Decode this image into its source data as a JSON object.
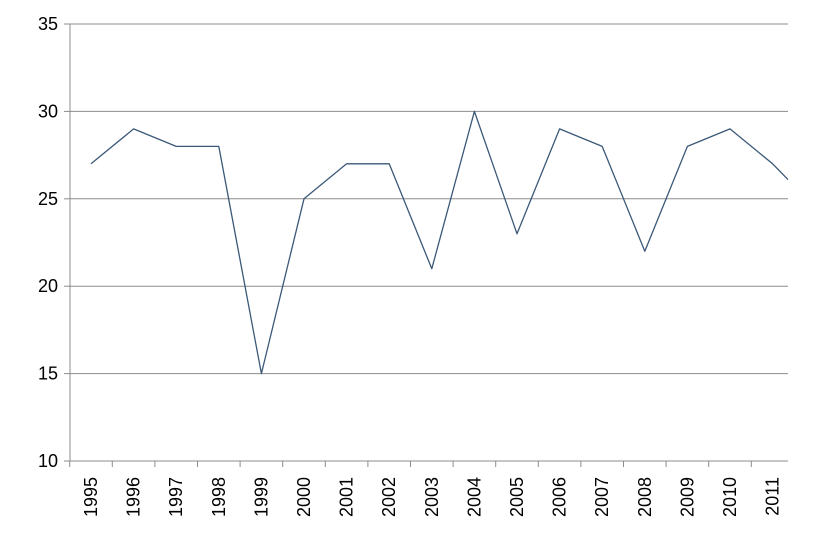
{
  "chart_data": {
    "type": "line",
    "title": "",
    "xlabel": "",
    "ylabel": "",
    "categories": [
      "1995",
      "1996",
      "1997",
      "1998",
      "1999",
      "2000",
      "2001",
      "2002",
      "2003",
      "2004",
      "2005",
      "2006",
      "2007",
      "2008",
      "2009",
      "2010",
      "2011"
    ],
    "series": [
      {
        "values": [
          27,
          29,
          28,
          28,
          15,
          25,
          27,
          27,
          21,
          30,
          23,
          29,
          28,
          22,
          28,
          29,
          27
        ],
        "trailing_value": 24.5,
        "color": "#3b5878"
      }
    ],
    "ylim": [
      10,
      35
    ],
    "yticks": [
      "10",
      "15",
      "20",
      "25",
      "30",
      "35"
    ],
    "grid": true,
    "legend": "none"
  }
}
